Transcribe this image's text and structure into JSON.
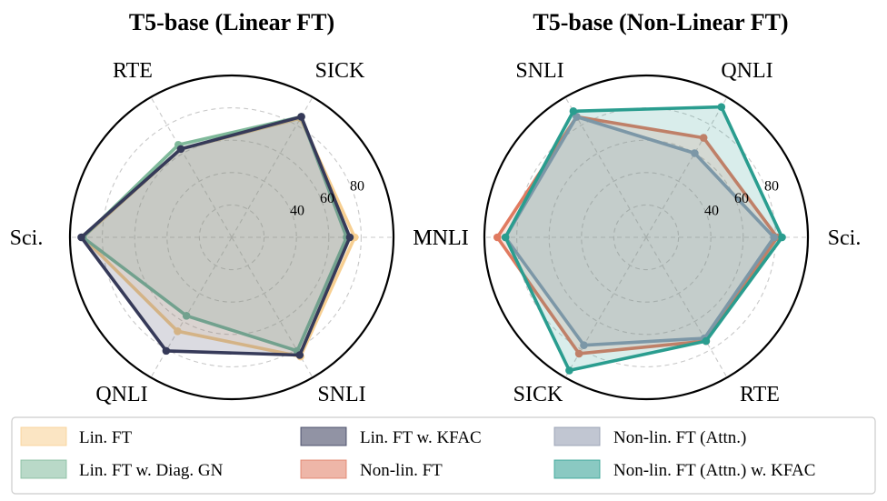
{
  "chart_data": [
    {
      "type": "radar",
      "title": "T5-base (Linear FT)",
      "axes": [
        "MNLI",
        "SICK",
        "RTE",
        "Sci.",
        "QNLI",
        "SNLI"
      ],
      "rmin": 0,
      "rmax": 100,
      "ticks": [
        40,
        60,
        80
      ],
      "tick_labels": [
        "40",
        "60",
        "80"
      ],
      "grid": true,
      "series": [
        {
          "name": "Lin. FT",
          "color": "#f7cf91",
          "values": [
            76,
            85,
            63,
            92,
            67,
            85
          ]
        },
        {
          "name": "Lin. FT w. Diag. GN",
          "color": "#7fb99a",
          "values": [
            71,
            86,
            66,
            92,
            56,
            81
          ]
        },
        {
          "name": "Lin. FT w. KFAC",
          "color": "#363a59",
          "values": [
            73,
            86,
            63,
            93,
            81,
            84
          ]
        }
      ]
    },
    {
      "type": "radar",
      "title": "T5-base (Non-Linear FT)",
      "axes": [
        "Sci.",
        "QNLI",
        "SNLI",
        "MNLI",
        "SICK",
        "RTE"
      ],
      "rmin": 0,
      "rmax": 100,
      "ticks": [
        40,
        60,
        80
      ],
      "tick_labels": [
        "40",
        "60",
        "80"
      ],
      "grid": true,
      "series": [
        {
          "name": "Non-lin. FT",
          "color": "#e07a60",
          "values": [
            81,
            71,
            86,
            92,
            83,
            74
          ]
        },
        {
          "name": "Non-lin. FT (Attn.)",
          "color": "#8e97ad",
          "values": [
            79,
            60,
            86,
            87,
            77,
            72
          ]
        },
        {
          "name": "Non-lin. FT (Attn.) w. KFAC",
          "color": "#2a9d8f",
          "values": [
            84,
            93,
            90,
            87,
            95,
            74
          ]
        }
      ]
    }
  ],
  "legend": {
    "position": "bottom",
    "entries": [
      {
        "label": "Lin. FT",
        "color": "#f7cf91"
      },
      {
        "label": "Lin. FT w. KFAC",
        "color": "#363a59"
      },
      {
        "label": "Non-lin. FT (Attn.)",
        "color": "#8e97ad"
      },
      {
        "label": "Lin. FT w. Diag. GN",
        "color": "#7fb99a"
      },
      {
        "label": "Non-lin. FT",
        "color": "#e07a60"
      },
      {
        "label": "Non-lin. FT (Attn.) w. KFAC",
        "color": "#2a9d8f"
      }
    ]
  }
}
